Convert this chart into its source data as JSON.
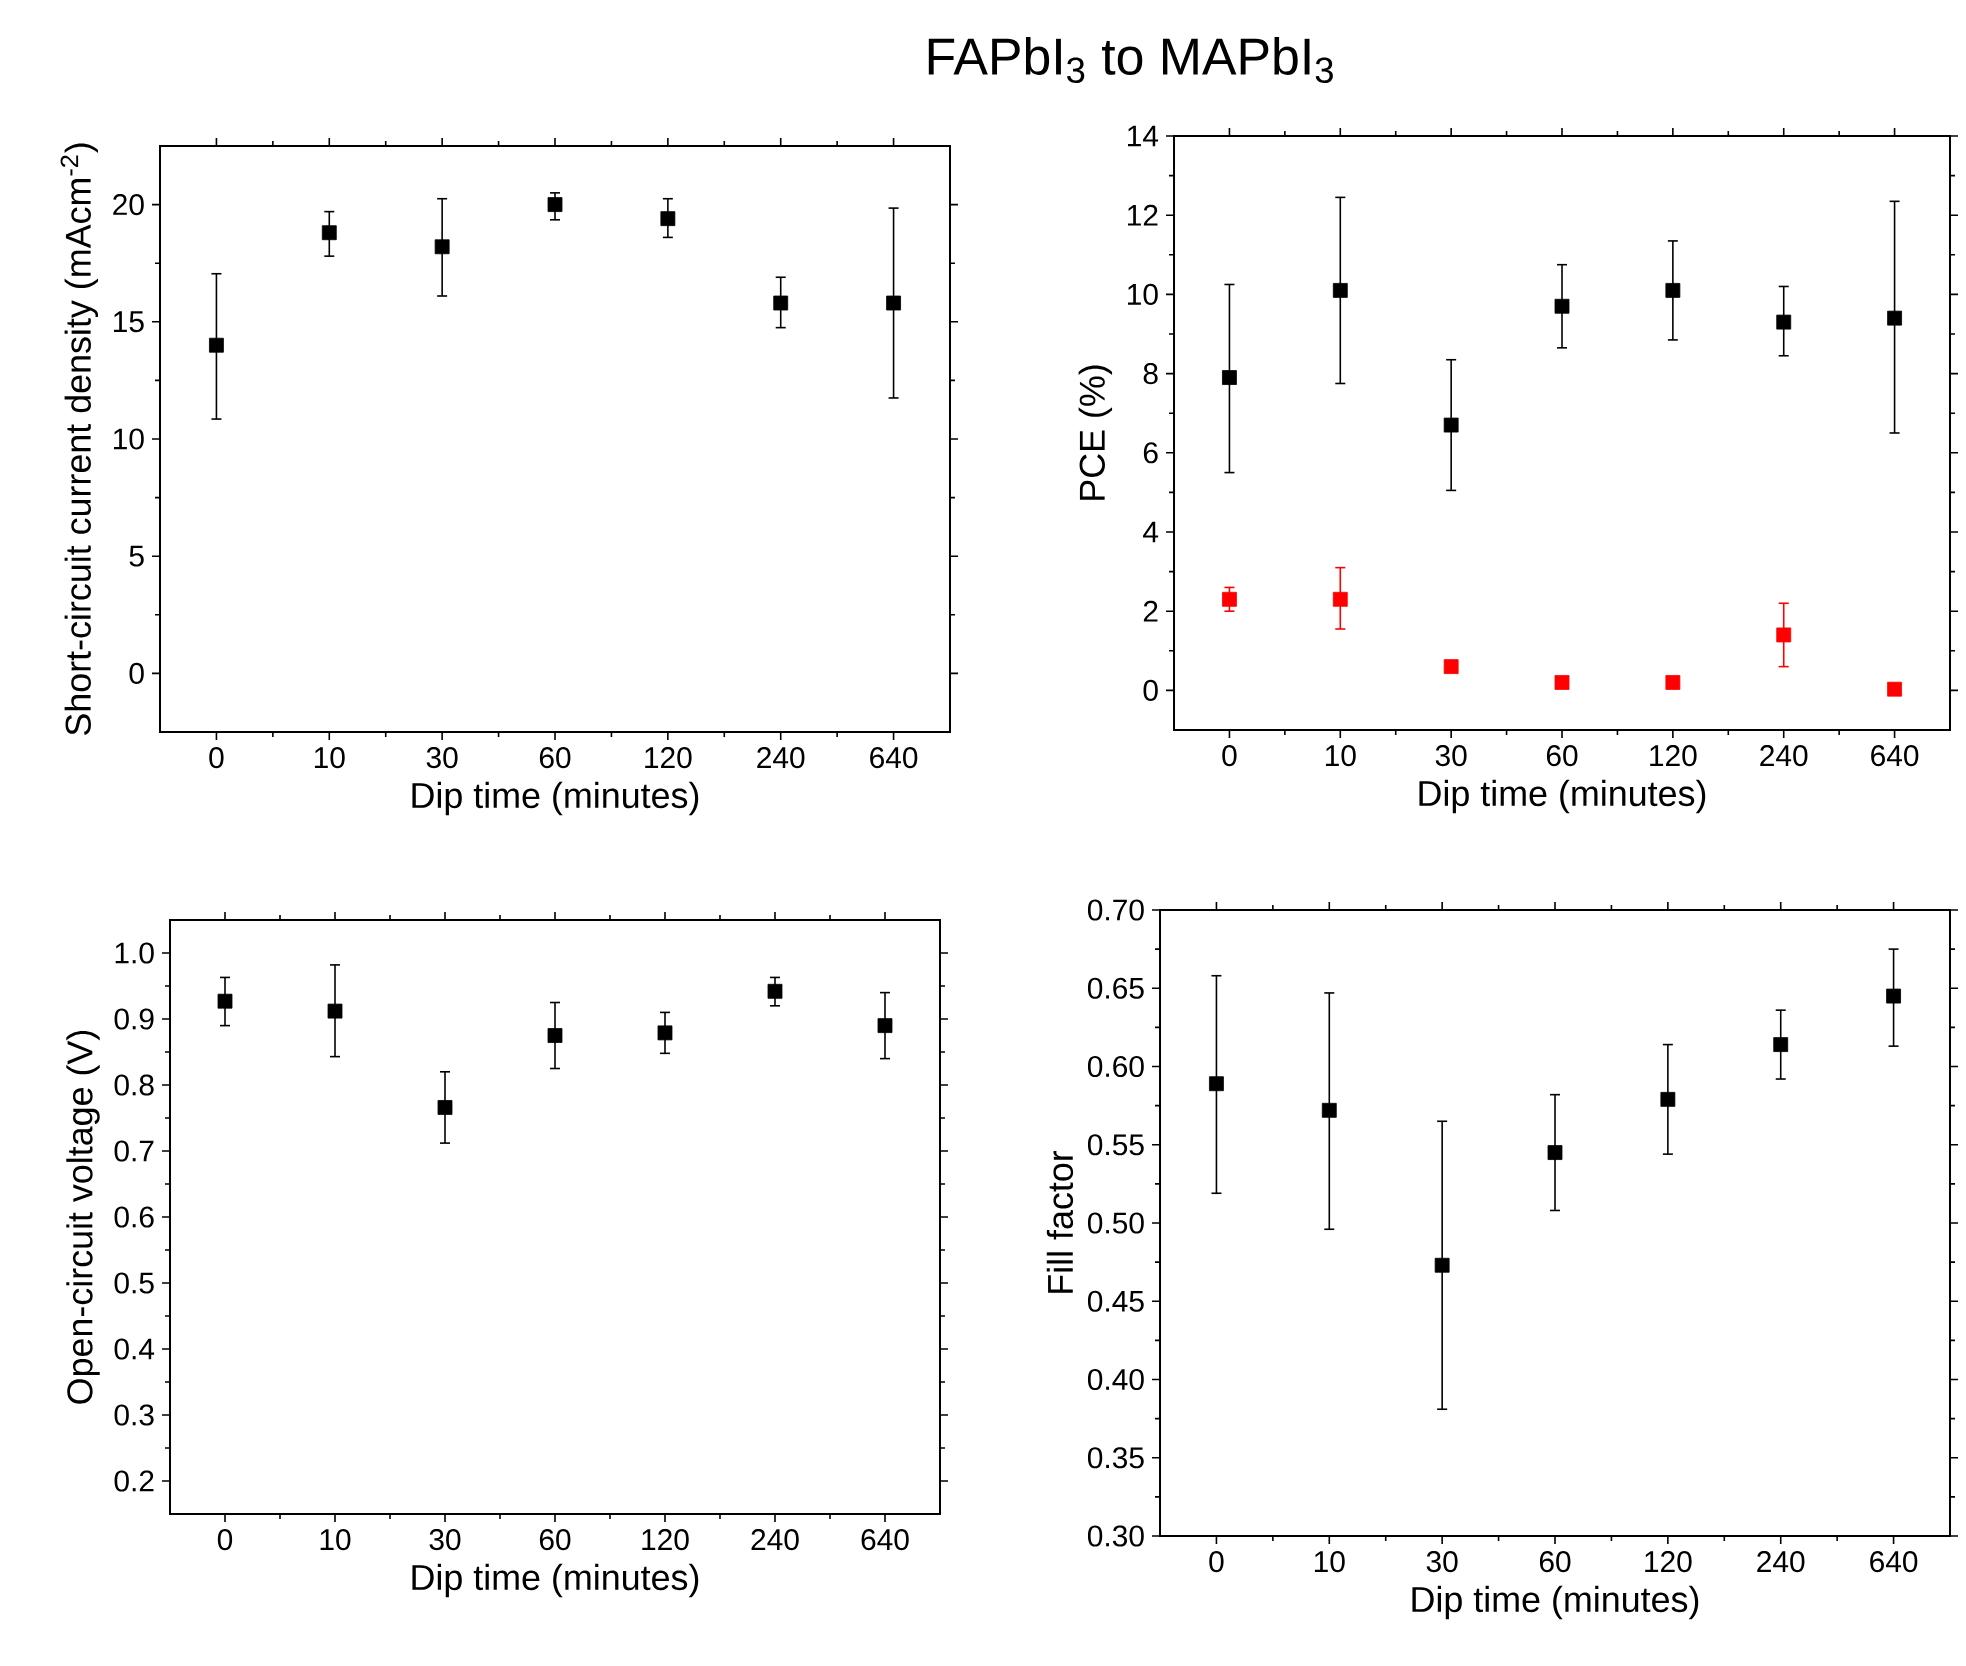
{
  "chart_data": [
    {
      "type": "other",
      "title": "FAPbI$_{3}$ to MAPbI$_{3}$"
    },
    {
      "type": "scatter",
      "xlabel": "Dip time (minutes)",
      "ylabel": "Short-circuit current density (mAcm$^{-2}$)",
      "marker": "square",
      "categories": [
        "0",
        "10",
        "30",
        "60",
        "120",
        "240",
        "640"
      ],
      "series": [
        {
          "color": "#000000",
          "values": [
            14.0,
            18.8,
            18.2,
            20.0,
            19.4,
            15.8,
            15.8
          ],
          "errors": [
            [
              10.85,
              17.05
            ],
            [
              17.8,
              19.7
            ],
            [
              16.1,
              20.25
            ],
            [
              19.35,
              20.5
            ],
            [
              18.6,
              20.25
            ],
            [
              14.75,
              16.9
            ],
            [
              11.75,
              19.85
            ]
          ]
        }
      ],
      "ylim": [
        -2.5,
        22.5
      ],
      "yticks": [
        0,
        5,
        10,
        15,
        20
      ]
    },
    {
      "type": "scatter",
      "xlabel": "Dip time (minutes)",
      "ylabel": "PCE (%)",
      "marker": "square",
      "categories": [
        "0",
        "10",
        "30",
        "60",
        "120",
        "240",
        "640"
      ],
      "series": [
        {
          "color": "#000000",
          "values": [
            7.9,
            10.1,
            6.7,
            9.7,
            10.1,
            9.3,
            9.4
          ],
          "errors": [
            [
              5.5,
              10.25
            ],
            [
              7.75,
              12.45
            ],
            [
              5.05,
              8.35
            ],
            [
              8.65,
              10.75
            ],
            [
              8.85,
              11.35
            ],
            [
              8.45,
              10.2
            ],
            [
              6.5,
              12.35
            ]
          ]
        },
        {
          "color": "#ff0000",
          "values": [
            2.3,
            2.3,
            0.6,
            0.2,
            0.2,
            1.4,
            0.03
          ],
          "errors": [
            [
              2.0,
              2.6
            ],
            [
              1.55,
              3.1
            ],
            [
              0.5,
              0.75
            ],
            null,
            null,
            [
              0.6,
              2.2
            ],
            null
          ]
        }
      ],
      "ylim": [
        -1,
        14
      ],
      "yticks": [
        0,
        2,
        4,
        6,
        8,
        10,
        12,
        14
      ]
    },
    {
      "type": "scatter",
      "xlabel": "Dip time (minutes)",
      "ylabel": "Open-circuit voltage (V)",
      "marker": "square",
      "categories": [
        "0",
        "10",
        "30",
        "60",
        "120",
        "240",
        "640"
      ],
      "series": [
        {
          "color": "#000000",
          "values": [
            0.927,
            0.912,
            0.766,
            0.875,
            0.879,
            0.942,
            0.89
          ],
          "errors": [
            [
              0.89,
              0.963
            ],
            [
              0.843,
              0.982
            ],
            [
              0.712,
              0.82
            ],
            [
              0.825,
              0.925
            ],
            [
              0.848,
              0.91
            ],
            [
              0.92,
              0.963
            ],
            [
              0.84,
              0.94
            ]
          ]
        }
      ],
      "ylim": [
        0.15,
        1.05
      ],
      "yticks": [
        0.2,
        0.3,
        0.4,
        0.5,
        0.6,
        0.7,
        0.8,
        0.9,
        {
          "value": 1.0,
          "label": "1.0"
        }
      ]
    },
    {
      "type": "scatter",
      "xlabel": "Dip time (minutes)",
      "ylabel": "Fill factor",
      "marker": "square",
      "categories": [
        "0",
        "10",
        "30",
        "60",
        "120",
        "240",
        "640"
      ],
      "series": [
        {
          "color": "#000000",
          "values": [
            0.589,
            0.572,
            0.473,
            0.545,
            0.579,
            0.614,
            0.645
          ],
          "errors": [
            [
              0.519,
              0.658
            ],
            [
              0.496,
              0.647
            ],
            [
              0.381,
              0.565
            ],
            [
              0.508,
              0.582
            ],
            [
              0.544,
              0.614
            ],
            [
              0.592,
              0.636
            ],
            [
              0.613,
              0.675
            ]
          ]
        }
      ],
      "ylim": [
        0.3,
        0.7
      ],
      "yticks": [
        {
          "value": 0.3,
          "label": "0.30"
        },
        0.35,
        {
          "value": 0.4,
          "label": "0.40"
        },
        0.45,
        {
          "value": 0.5,
          "label": "0.50"
        },
        0.55,
        {
          "value": 0.6,
          "label": "0.60"
        },
        0.65,
        {
          "value": 0.7,
          "label": "0.70"
        }
      ]
    }
  ]
}
